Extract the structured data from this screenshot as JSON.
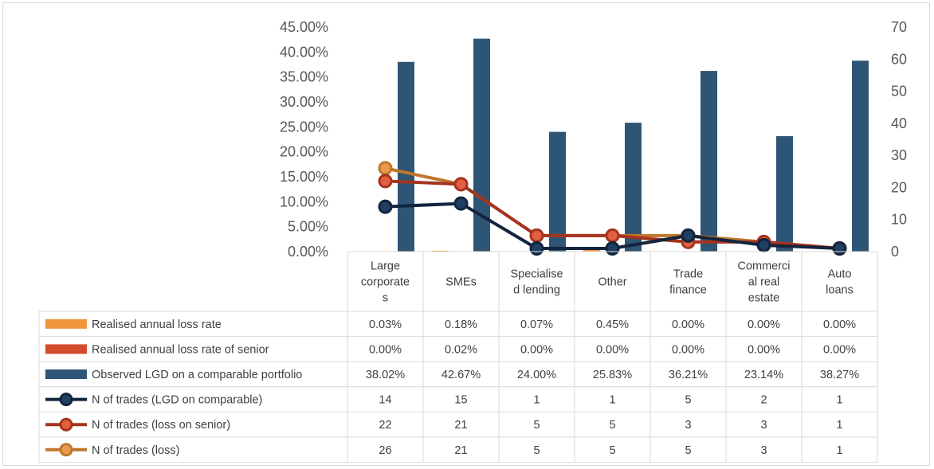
{
  "chart_data": {
    "type": "bar",
    "categories": [
      "Large corporates",
      "SMEs",
      "Specialised lending",
      "Other",
      "Trade finance",
      "Commercial real estate",
      "Auto loans"
    ],
    "category_lines": [
      [
        "Large",
        "corporate",
        "s"
      ],
      [
        "SMEs"
      ],
      [
        "Specialise",
        "d lending"
      ],
      [
        "Other"
      ],
      [
        "Trade",
        "finance"
      ],
      [
        "Commerci",
        "al real",
        "estate"
      ],
      [
        "Auto",
        "loans"
      ]
    ],
    "y_left": {
      "ylim": [
        0,
        0.45
      ],
      "ticks": [
        "0.00%",
        "5.00%",
        "10.00%",
        "15.00%",
        "20.00%",
        "25.00%",
        "30.00%",
        "35.00%",
        "40.00%",
        "45.00%"
      ]
    },
    "y_right": {
      "ylim": [
        0,
        70
      ],
      "ticks": [
        "0",
        "10",
        "20",
        "30",
        "40",
        "50",
        "60",
        "70"
      ]
    },
    "grid": false,
    "legend": "data-table",
    "series": [
      {
        "name": "Realised annual loss rate",
        "kind": "bar",
        "axis": "left",
        "color": "#f0953a",
        "values": [
          0.0003,
          0.0018,
          0.0007,
          0.0045,
          0,
          0,
          0
        ],
        "labels": [
          "0.03%",
          "0.18%",
          "0.07%",
          "0.45%",
          "0.00%",
          "0.00%",
          "0.00%"
        ]
      },
      {
        "name": "Realised annual loss rate of senior",
        "kind": "bar",
        "axis": "left",
        "color": "#d24b2a",
        "values": [
          0,
          0.0002,
          0,
          0,
          0,
          0,
          0
        ],
        "labels": [
          "0.00%",
          "0.02%",
          "0.00%",
          "0.00%",
          "0.00%",
          "0.00%",
          "0.00%"
        ]
      },
      {
        "name": "Observed LGD on a comparable portfolio",
        "kind": "bar",
        "axis": "left",
        "color": "#2e5575",
        "values": [
          0.3802,
          0.4267,
          0.24,
          0.2583,
          0.3621,
          0.2314,
          0.3827
        ],
        "labels": [
          "38.02%",
          "42.67%",
          "24.00%",
          "25.83%",
          "36.21%",
          "23.14%",
          "38.27%"
        ]
      },
      {
        "name": "N of trades (LGD on comparable)",
        "kind": "line",
        "axis": "right",
        "color": "#13243e",
        "values": [
          14,
          15,
          1,
          1,
          5,
          2,
          1
        ],
        "labels": [
          "14",
          "15",
          "1",
          "1",
          "5",
          "2",
          "1"
        ]
      },
      {
        "name": "N of trades (loss on senior)",
        "kind": "line",
        "axis": "right",
        "color": "#a5341f",
        "values": [
          22,
          21,
          5,
          5,
          3,
          3,
          1
        ],
        "labels": [
          "22",
          "21",
          "5",
          "5",
          "3",
          "3",
          "1"
        ]
      },
      {
        "name": "N of trades (loss)",
        "kind": "line",
        "axis": "right",
        "color": "#c0762c",
        "values": [
          26,
          21,
          5,
          5,
          5,
          3,
          1
        ],
        "labels": [
          "26",
          "21",
          "5",
          "5",
          "5",
          "3",
          "1"
        ]
      }
    ]
  }
}
